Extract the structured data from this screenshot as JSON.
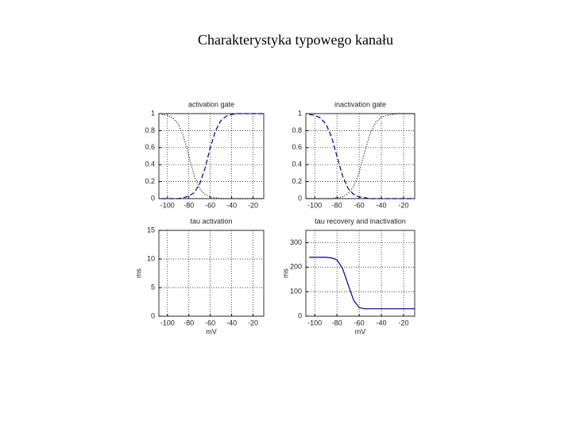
{
  "title": "Charakterystyka typowego kanału",
  "chart_data": [
    {
      "type": "line",
      "title": "activation gate",
      "x": [
        -105,
        -100,
        -95,
        -90,
        -85,
        -80,
        -75,
        -70,
        -65,
        -60,
        -55,
        -50,
        -45,
        -40,
        -35,
        -30,
        -25,
        -20,
        -15,
        -10
      ],
      "series": [
        {
          "color": "#00008b",
          "dash": "dashed",
          "values": [
            0,
            0,
            0,
            0,
            0.01,
            0.03,
            0.07,
            0.17,
            0.35,
            0.6,
            0.8,
            0.92,
            0.97,
            0.99,
            1,
            1,
            1,
            1,
            1,
            1
          ]
        },
        {
          "color": "#000000",
          "dash": "dotted",
          "values": [
            0.99,
            0.98,
            0.95,
            0.88,
            0.73,
            0.5,
            0.27,
            0.12,
            0.05,
            0.02,
            0.01,
            0,
            0,
            0,
            0,
            0,
            0,
            0,
            0,
            0
          ]
        }
      ],
      "xlim": [
        -108,
        -10
      ],
      "xticks": [
        -100,
        -80,
        -60,
        -40,
        -20
      ],
      "ylim": [
        0,
        1
      ],
      "yticks": [
        0,
        0.2,
        0.4,
        0.6,
        0.8,
        1
      ],
      "grid": true
    },
    {
      "type": "line",
      "title": "inactivation gate",
      "x": [
        -105,
        -100,
        -95,
        -90,
        -85,
        -80,
        -75,
        -70,
        -65,
        -60,
        -55,
        -50,
        -45,
        -40,
        -35,
        -30,
        -25,
        -20,
        -15,
        -10
      ],
      "series": [
        {
          "color": "#00008b",
          "dash": "dashed",
          "values": [
            0.99,
            0.98,
            0.95,
            0.88,
            0.73,
            0.5,
            0.27,
            0.12,
            0.05,
            0.02,
            0.01,
            0,
            0,
            0,
            0,
            0,
            0,
            0,
            0,
            0
          ]
        },
        {
          "color": "#000000",
          "dash": "dotted",
          "values": [
            0,
            0,
            0,
            0,
            0,
            0.01,
            0.02,
            0.06,
            0.14,
            0.31,
            0.55,
            0.77,
            0.9,
            0.96,
            0.98,
            0.99,
            1,
            1,
            1,
            1
          ]
        }
      ],
      "xlim": [
        -108,
        -10
      ],
      "xticks": [
        -100,
        -80,
        -60,
        -40,
        -20
      ],
      "ylim": [
        0,
        1
      ],
      "yticks": [
        0,
        0.2,
        0.4,
        0.6,
        0.8,
        1
      ],
      "grid": true
    },
    {
      "type": "line",
      "title": "tau activation",
      "xlabel": "mV",
      "ylabel": "ms",
      "x": [],
      "series": [],
      "xlim": [
        -108,
        -10
      ],
      "xticks": [
        -100,
        -80,
        -60,
        -40,
        -20
      ],
      "ylim": [
        0,
        15
      ],
      "yticks": [
        0,
        5,
        10,
        15
      ],
      "grid": true
    },
    {
      "type": "line",
      "title": "tau recovery and inactivation",
      "xlabel": "mV",
      "ylabel": "ms",
      "x": [
        -105,
        -100,
        -95,
        -90,
        -85,
        -80,
        -75,
        -70,
        -65,
        -60,
        -55,
        -50,
        -45,
        -40,
        -35,
        -30,
        -25,
        -20,
        -15,
        -10
      ],
      "series": [
        {
          "color": "#00008b",
          "dash": "solid",
          "values": [
            240,
            240,
            240,
            240,
            238,
            230,
            195,
            130,
            65,
            35,
            30,
            30,
            30,
            30,
            30,
            30,
            30,
            30,
            30,
            30
          ]
        }
      ],
      "xlim": [
        -108,
        -10
      ],
      "xticks": [
        -100,
        -80,
        -60,
        -40,
        -20
      ],
      "ylim": [
        0,
        350
      ],
      "yticks": [
        0,
        100,
        200,
        300
      ],
      "grid": true
    }
  ]
}
